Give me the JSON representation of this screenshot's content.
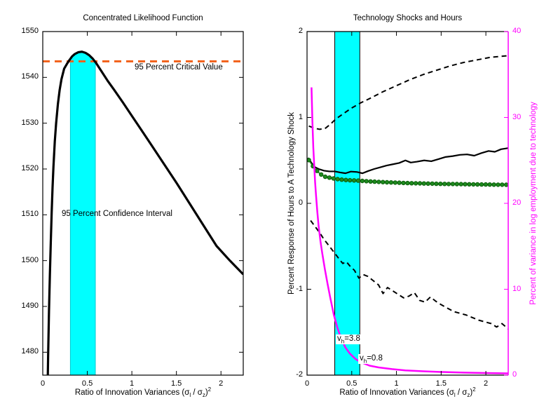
{
  "left_plot": {
    "title": "Concentrated Likelihood Function",
    "critical_value_label": "95 Percent Critical Value",
    "confidence_interval_label": "95 Percent Confidence Interval"
  },
  "right_plot": {
    "title": "Technology Shocks and Hours",
    "ylabel_left": "Percent Response of Hours to A Technology Shock",
    "ylabel_right": "Percent of variance in log employment due to technology",
    "annotations": [
      {
        "pre": "v",
        "sub": "h",
        "val": "=3.8"
      },
      {
        "pre": "v",
        "sub": "h",
        "val": "=0.8"
      }
    ]
  },
  "xlabel_parts": {
    "pre": "Ratio of Innovation Variances (σ",
    "sub1": "l",
    "mid": " / σ",
    "sub2": "z",
    "close": ")",
    "sup": "2"
  },
  "colors": {
    "band": "#00ffff",
    "band_edge_left": "#00c8d0",
    "band_edge_right": "#000000",
    "critical": "#f2641e",
    "magenta": "#ff00ff",
    "green_fill": "#1e8a1e",
    "green_edge": "#0b5e0b",
    "black": "#000000"
  },
  "chart_data": [
    {
      "type": "line",
      "title": "Concentrated Likelihood Function",
      "xlabel": "Ratio of Innovation Variances (sigma_l / sigma_z)^2",
      "xlim": [
        0,
        2.25
      ],
      "ylim": [
        1475,
        1550
      ],
      "xticks": [
        0,
        0.5,
        1,
        1.5,
        2
      ],
      "yticks": [
        1480,
        1490,
        1500,
        1510,
        1520,
        1530,
        1540,
        1550
      ],
      "critical_value": 1543.5,
      "confidence_interval_x": [
        0.31,
        0.59
      ],
      "annotations": [
        {
          "text": "95 Percent Critical Value",
          "x": 1.05,
          "y": 1541.5
        },
        {
          "text": "95 Percent Confidence Interval",
          "x": 0.21,
          "y": 1510
        }
      ],
      "series": [
        {
          "name": "concentrated log-likelihood",
          "style": "solid",
          "color": "#000000",
          "width": 3.2,
          "points": [
            [
              0.055,
              1473
            ],
            [
              0.06,
              1479
            ],
            [
              0.07,
              1489
            ],
            [
              0.08,
              1497
            ],
            [
              0.09,
              1504
            ],
            [
              0.1,
              1510.5
            ],
            [
              0.11,
              1516
            ],
            [
              0.12,
              1520.5
            ],
            [
              0.135,
              1526
            ],
            [
              0.15,
              1530
            ],
            [
              0.17,
              1534.2
            ],
            [
              0.19,
              1537.3
            ],
            [
              0.21,
              1539.6
            ],
            [
              0.24,
              1541.9
            ],
            [
              0.27,
              1542.9
            ],
            [
              0.3,
              1543.8
            ],
            [
              0.33,
              1544.6
            ],
            [
              0.36,
              1545.1
            ],
            [
              0.4,
              1545.5
            ],
            [
              0.44,
              1545.6
            ],
            [
              0.48,
              1545.35
            ],
            [
              0.52,
              1544.85
            ],
            [
              0.56,
              1544.1
            ],
            [
              0.6,
              1543.1
            ],
            [
              0.66,
              1541.3
            ],
            [
              0.73,
              1539.2
            ],
            [
              0.8,
              1537.3
            ],
            [
              0.9,
              1534.5
            ],
            [
              1.0,
              1531.6
            ],
            [
              1.1,
              1528.7
            ],
            [
              1.2,
              1525.8
            ],
            [
              1.35,
              1521.4
            ],
            [
              1.5,
              1517.0
            ],
            [
              1.65,
              1512.4
            ],
            [
              1.8,
              1507.8
            ],
            [
              1.95,
              1503.2
            ],
            [
              2.1,
              1500.0
            ],
            [
              2.25,
              1497.0
            ]
          ]
        }
      ]
    },
    {
      "type": "line",
      "title": "Technology Shocks and Hours",
      "xlabel": "Ratio of Innovation Variances (sigma_l / sigma_z)^2",
      "xlim": [
        0,
        2.25
      ],
      "ylim_left": [
        -2,
        2
      ],
      "ylim_right": [
        0,
        40
      ],
      "xticks": [
        0,
        0.5,
        1,
        1.5,
        2
      ],
      "yticks_left": [
        -2,
        -1,
        0,
        1,
        2
      ],
      "yticks_right": [
        0,
        10,
        20,
        30,
        40
      ],
      "shaded_region_x": [
        0.31,
        0.59
      ],
      "annotations": [
        {
          "text": "v_h=3.8",
          "x": 0.33,
          "y": -1.6
        },
        {
          "text": "v_h=0.8",
          "x": 0.58,
          "y": -1.83
        }
      ],
      "series": [
        {
          "name": "upper confidence band (dashed)",
          "axis": "left",
          "style": "dashed",
          "color": "#000000",
          "width": 2,
          "points": [
            [
              0.02,
              0.9
            ],
            [
              0.08,
              0.875
            ],
            [
              0.14,
              0.862
            ],
            [
              0.2,
              0.87
            ],
            [
              0.26,
              0.92
            ],
            [
              0.32,
              0.98
            ],
            [
              0.4,
              1.04
            ],
            [
              0.5,
              1.11
            ],
            [
              0.6,
              1.17
            ],
            [
              0.72,
              1.23
            ],
            [
              0.85,
              1.3
            ],
            [
              1.0,
              1.37
            ],
            [
              1.15,
              1.44
            ],
            [
              1.3,
              1.5
            ],
            [
              1.45,
              1.55
            ],
            [
              1.6,
              1.6
            ],
            [
              1.75,
              1.64
            ],
            [
              1.9,
              1.67
            ],
            [
              2.05,
              1.7
            ],
            [
              2.26,
              1.72
            ]
          ]
        },
        {
          "name": "hours response point estimate (solid)",
          "axis": "left",
          "style": "solid",
          "color": "#000000",
          "width": 2.2,
          "points": [
            [
              0.01,
              0.53
            ],
            [
              0.05,
              0.47
            ],
            [
              0.09,
              0.42
            ],
            [
              0.13,
              0.4
            ],
            [
              0.19,
              0.38
            ],
            [
              0.25,
              0.372
            ],
            [
              0.31,
              0.372
            ],
            [
              0.37,
              0.36
            ],
            [
              0.43,
              0.35
            ],
            [
              0.49,
              0.37
            ],
            [
              0.56,
              0.365
            ],
            [
              0.62,
              0.35
            ],
            [
              0.68,
              0.375
            ],
            [
              0.75,
              0.4
            ],
            [
              0.82,
              0.42
            ],
            [
              0.89,
              0.44
            ],
            [
              0.96,
              0.455
            ],
            [
              1.03,
              0.47
            ],
            [
              1.1,
              0.5
            ],
            [
              1.16,
              0.475
            ],
            [
              1.23,
              0.485
            ],
            [
              1.31,
              0.5
            ],
            [
              1.39,
              0.49
            ],
            [
              1.47,
              0.515
            ],
            [
              1.55,
              0.54
            ],
            [
              1.63,
              0.55
            ],
            [
              1.71,
              0.565
            ],
            [
              1.79,
              0.57
            ],
            [
              1.87,
              0.555
            ],
            [
              1.95,
              0.585
            ],
            [
              2.03,
              0.61
            ],
            [
              2.1,
              0.6
            ],
            [
              2.17,
              0.63
            ],
            [
              2.26,
              0.645
            ]
          ]
        },
        {
          "name": "hours response alternative (green circles)",
          "axis": "left",
          "style": "markers",
          "color": "#1e8a1e",
          "width": 2,
          "points": [
            [
              0.01,
              0.52
            ],
            [
              0.06,
              0.44
            ],
            [
              0.1,
              0.39
            ],
            [
              0.15,
              0.34
            ],
            [
              0.2,
              0.31
            ],
            [
              0.27,
              0.295
            ],
            [
              0.35,
              0.28
            ],
            [
              0.45,
              0.27
            ],
            [
              0.56,
              0.265
            ],
            [
              0.7,
              0.255
            ],
            [
              0.9,
              0.245
            ],
            [
              1.15,
              0.235
            ],
            [
              1.45,
              0.228
            ],
            [
              1.8,
              0.222
            ],
            [
              2.1,
              0.218
            ],
            [
              2.26,
              0.216
            ]
          ]
        },
        {
          "name": "lower confidence band (dashed)",
          "axis": "left",
          "style": "dashed",
          "color": "#000000",
          "width": 2,
          "points": [
            [
              0.04,
              -0.2
            ],
            [
              0.09,
              -0.27
            ],
            [
              0.14,
              -0.34
            ],
            [
              0.19,
              -0.42
            ],
            [
              0.25,
              -0.5
            ],
            [
              0.31,
              -0.58
            ],
            [
              0.36,
              -0.65
            ],
            [
              0.4,
              -0.7
            ],
            [
              0.44,
              -0.68
            ],
            [
              0.48,
              -0.73
            ],
            [
              0.53,
              -0.78
            ],
            [
              0.58,
              -0.87
            ],
            [
              0.63,
              -0.83
            ],
            [
              0.68,
              -0.85
            ],
            [
              0.74,
              -0.9
            ],
            [
              0.8,
              -0.95
            ],
            [
              0.85,
              -1.05
            ],
            [
              0.9,
              -0.98
            ],
            [
              0.96,
              -1.02
            ],
            [
              1.02,
              -1.06
            ],
            [
              1.08,
              -1.1
            ],
            [
              1.14,
              -1.08
            ],
            [
              1.2,
              -1.04
            ],
            [
              1.26,
              -1.13
            ],
            [
              1.32,
              -1.15
            ],
            [
              1.38,
              -1.09
            ],
            [
              1.44,
              -1.14
            ],
            [
              1.5,
              -1.18
            ],
            [
              1.57,
              -1.22
            ],
            [
              1.64,
              -1.26
            ],
            [
              1.71,
              -1.28
            ],
            [
              1.78,
              -1.3
            ],
            [
              1.85,
              -1.33
            ],
            [
              1.92,
              -1.36
            ],
            [
              1.99,
              -1.38
            ],
            [
              2.06,
              -1.4
            ],
            [
              2.12,
              -1.44
            ],
            [
              2.18,
              -1.4
            ],
            [
              2.26,
              -1.47
            ]
          ]
        },
        {
          "name": "variance share of technology (magenta, right axis)",
          "axis": "right",
          "style": "solid",
          "color": "#ff00ff",
          "width": 2.5,
          "points": [
            [
              0.05,
              33.5
            ],
            [
              0.055,
              31.5
            ],
            [
              0.06,
              29.5
            ],
            [
              0.065,
              28
            ],
            [
              0.07,
              26.5
            ],
            [
              0.08,
              24.5
            ],
            [
              0.09,
              22.5
            ],
            [
              0.1,
              21
            ],
            [
              0.115,
              19
            ],
            [
              0.13,
              17.3
            ],
            [
              0.15,
              15.6
            ],
            [
              0.17,
              14.2
            ],
            [
              0.2,
              12.3
            ],
            [
              0.23,
              10.6
            ],
            [
              0.26,
              9.0
            ],
            [
              0.3,
              7.0
            ],
            [
              0.34,
              5.5
            ],
            [
              0.38,
              4.3
            ],
            [
              0.43,
              3.2
            ],
            [
              0.48,
              2.5
            ],
            [
              0.54,
              1.9
            ],
            [
              0.6,
              1.5
            ],
            [
              0.7,
              1.1
            ],
            [
              0.8,
              0.9
            ],
            [
              0.95,
              0.7
            ],
            [
              1.1,
              0.55
            ],
            [
              1.3,
              0.45
            ],
            [
              1.5,
              0.37
            ],
            [
              1.75,
              0.3
            ],
            [
              2.0,
              0.25
            ],
            [
              2.26,
              0.2
            ]
          ]
        }
      ]
    }
  ]
}
